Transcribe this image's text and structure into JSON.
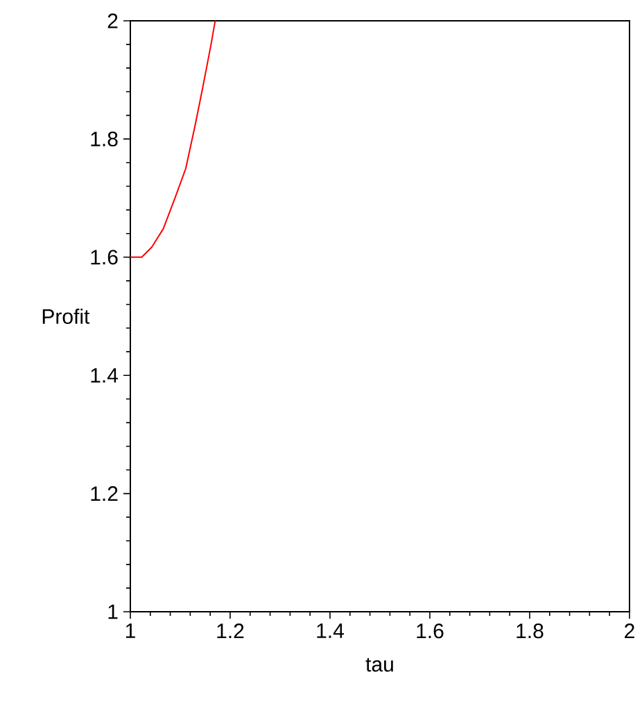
{
  "chart_data": {
    "type": "line",
    "xlabel": "tau",
    "ylabel": "Profit",
    "x": [
      1.0,
      1.023,
      1.043,
      1.066,
      1.089,
      1.111,
      1.13,
      1.145,
      1.161,
      1.17
    ],
    "series": [
      {
        "color": "#ff0000",
        "values": [
          1.6,
          1.6,
          1.617,
          1.648,
          1.699,
          1.75,
          1.824,
          1.887,
          1.957,
          2.0
        ]
      }
    ],
    "xlim": [
      1,
      2
    ],
    "ylim": [
      1,
      2
    ],
    "xticks": [
      1,
      1.2,
      1.4,
      1.6,
      1.8,
      2
    ],
    "yticks": [
      1,
      1.2,
      1.4,
      1.6,
      1.8,
      2
    ],
    "grid": false,
    "marker": "none",
    "line_style": "solid"
  }
}
